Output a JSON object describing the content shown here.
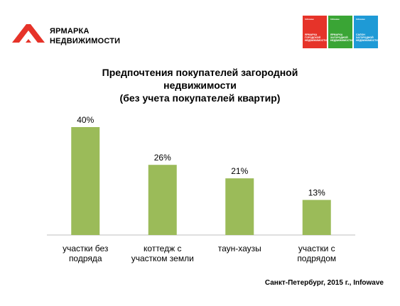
{
  "brand": {
    "logo_line1": "ЯРМАРКА",
    "logo_line2": "НЕДВИЖИМОСТИ",
    "logo_color": "#e63329",
    "badges": [
      {
        "color": "#e63329",
        "top": "Infowave",
        "text": "ЯРМАРКА ГОРОДСКОЙ НЕДВИЖИМОСТИ"
      },
      {
        "color": "#3aa535",
        "top": "Infowave",
        "text": "ЯРМАРКА ЗАГОРОДНОЙ НЕДВИЖИМОСТИ"
      },
      {
        "color": "#1e9ad6",
        "top": "Infowave",
        "text": "САЛОН ЗАГОРОДНОЙ НЕДВИЖИМОСТИ"
      }
    ]
  },
  "chart_data": {
    "type": "bar",
    "title_lines": [
      "Предпочтения покупателей загородной",
      "недвижимости",
      "(без учета покупателей квартир)"
    ],
    "categories": [
      [
        "участки без",
        "подряда"
      ],
      [
        "коттедж с",
        "участком земли"
      ],
      [
        "таун-хаузы"
      ],
      [
        "участки с",
        "подрядом"
      ]
    ],
    "values": [
      40,
      26,
      21,
      13
    ],
    "value_labels": [
      "40%",
      "26%",
      "21%",
      "13%"
    ],
    "ylim": [
      0,
      40
    ],
    "bar_color": "#9bbb59",
    "grid": false
  },
  "footer": {
    "source": "Санкт-Петербург, 2015 г., Infowave"
  }
}
